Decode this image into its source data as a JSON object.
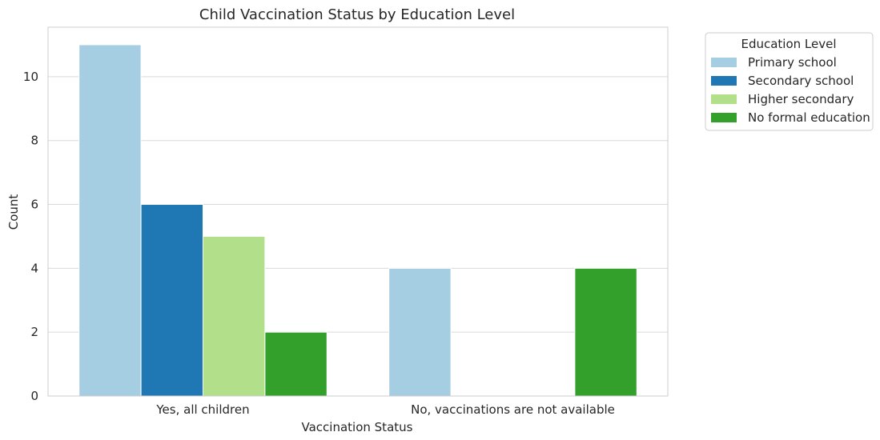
{
  "chart_data": {
    "type": "bar",
    "title": "Child Vaccination Status by Education Level",
    "xlabel": "Vaccination Status",
    "ylabel": "Count",
    "categories": [
      "Yes, all children",
      "No, vaccinations are not available"
    ],
    "ylim": [
      0,
      11.55
    ],
    "yticks": [
      0,
      2,
      4,
      6,
      8,
      10
    ],
    "grid": true,
    "legend": {
      "title": "Education Level",
      "placement": "outside-top-right"
    },
    "series": [
      {
        "name": "Primary school",
        "color": "#a6cee3",
        "values": [
          11,
          4
        ]
      },
      {
        "name": "Secondary school",
        "color": "#1f78b4",
        "values": [
          6,
          0
        ]
      },
      {
        "name": "Higher secondary",
        "color": "#b2df8a",
        "values": [
          5,
          0
        ]
      },
      {
        "name": "No formal education",
        "color": "#33a02c",
        "values": [
          2,
          4
        ]
      }
    ]
  }
}
